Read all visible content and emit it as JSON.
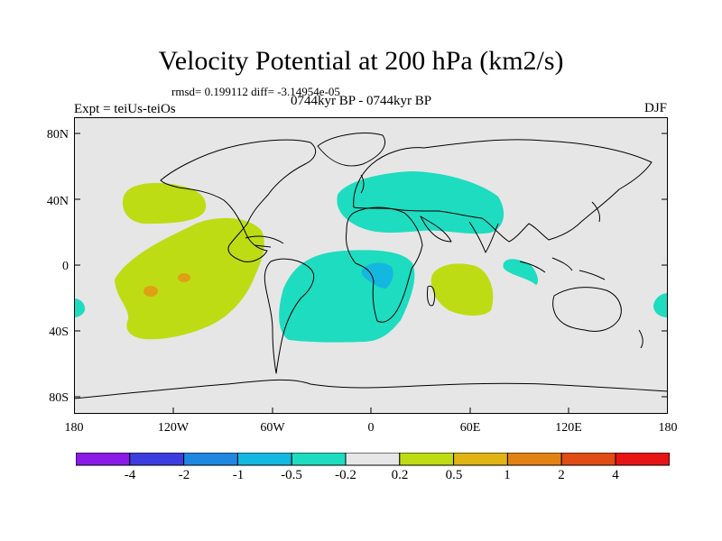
{
  "title": "Velocity Potential at 200 hPa (km2/s)",
  "stats": "rmsd= 0.199112 diff= -3.14954e-05",
  "experiment": "Expt = teiUs-teiOs",
  "period": "0744kyr BP - 0744kyr BP",
  "season": "DJF",
  "axes": {
    "lat_labels": [
      "80N",
      "40N",
      "0",
      "40S",
      "80S"
    ],
    "lon_labels": [
      "180",
      "120W",
      "60W",
      "0",
      "60E",
      "120E",
      "180"
    ]
  },
  "colorbar": {
    "labels": [
      "-4",
      "-2",
      "-1",
      "-0.5",
      "-0.2",
      "0.2",
      "0.5",
      "1",
      "2",
      "4"
    ],
    "colors": [
      "#8a1ae6",
      "#3d3ddf",
      "#1f87e0",
      "#14b7e0",
      "#1edcc0",
      "#e6e6e6",
      "#bedc14",
      "#e0b414",
      "#e28214",
      "#e04c14",
      "#e61414"
    ]
  },
  "colors": {
    "background": "#e6e6e6",
    "positive_weak": "#bedc14",
    "positive_mid": "#e0a014",
    "negative_weak": "#1edcc0",
    "negative_mid": "#14b7e0"
  }
}
